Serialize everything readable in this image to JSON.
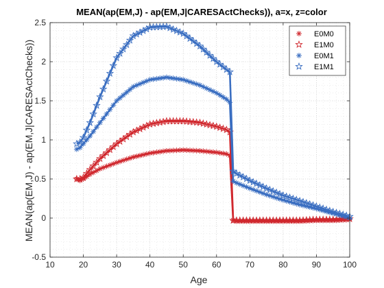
{
  "chart_data": {
    "type": "line",
    "title": "MEAN(ap(EM,J) - ap(EM,J|CARESActChecks)), a=x, z=color",
    "xlabel": "Age",
    "ylabel": "MEAN(ap(EM,J) - ap(EM,J|CARESActChecks))",
    "xlim": [
      10,
      100
    ],
    "ylim": [
      -0.5,
      2.5
    ],
    "xticks": [
      "10",
      "20",
      "30",
      "40",
      "50",
      "60",
      "70",
      "80",
      "90",
      "100"
    ],
    "yticks": [
      "-0.5",
      "0",
      "0.5",
      "1",
      "1.5",
      "2",
      "2.5"
    ],
    "grid": true,
    "legend_position": "top-right",
    "series": [
      {
        "name": "E0M0",
        "color": "#d0282e",
        "marker": "asterisk",
        "x": [
          18,
          19,
          20,
          22,
          25,
          30,
          35,
          40,
          45,
          50,
          55,
          60,
          63,
          64,
          65,
          66,
          70,
          75,
          80,
          85,
          90,
          95,
          100
        ],
        "y": [
          0.5,
          0.48,
          0.5,
          0.56,
          0.63,
          0.71,
          0.78,
          0.83,
          0.86,
          0.87,
          0.86,
          0.84,
          0.82,
          0.8,
          -0.03,
          -0.04,
          -0.04,
          -0.04,
          -0.04,
          -0.04,
          -0.03,
          -0.03,
          -0.02
        ]
      },
      {
        "name": "E1M0",
        "color": "#d0282e",
        "marker": "star",
        "x": [
          18,
          19,
          20,
          22,
          25,
          30,
          35,
          40,
          45,
          50,
          55,
          60,
          63,
          64,
          65,
          66,
          70,
          75,
          80,
          85,
          90,
          95,
          100
        ],
        "y": [
          0.5,
          0.5,
          0.52,
          0.62,
          0.76,
          0.95,
          1.1,
          1.2,
          1.24,
          1.24,
          1.22,
          1.17,
          1.13,
          1.1,
          -0.03,
          -0.03,
          -0.03,
          -0.03,
          -0.03,
          -0.03,
          -0.02,
          -0.02,
          -0.01
        ]
      },
      {
        "name": "E0M1",
        "color": "#3a6ec1",
        "marker": "asterisk",
        "x": [
          18,
          19,
          20,
          22,
          25,
          30,
          35,
          40,
          45,
          50,
          55,
          60,
          63,
          64,
          65,
          66,
          70,
          75,
          80,
          85,
          90,
          95,
          100
        ],
        "y": [
          0.88,
          0.9,
          0.95,
          1.05,
          1.22,
          1.5,
          1.68,
          1.77,
          1.8,
          1.77,
          1.7,
          1.6,
          1.52,
          1.48,
          0.47,
          0.45,
          0.38,
          0.3,
          0.23,
          0.17,
          0.12,
          0.06,
          0.0
        ]
      },
      {
        "name": "E1M1",
        "color": "#3a6ec1",
        "marker": "star",
        "x": [
          18,
          19,
          20,
          22,
          25,
          30,
          35,
          40,
          45,
          50,
          55,
          60,
          63,
          64,
          65,
          66,
          70,
          75,
          80,
          85,
          90,
          95,
          100
        ],
        "y": [
          0.95,
          0.97,
          1.03,
          1.22,
          1.55,
          2.05,
          2.33,
          2.44,
          2.45,
          2.36,
          2.2,
          2.0,
          1.9,
          1.87,
          0.6,
          0.57,
          0.48,
          0.38,
          0.29,
          0.22,
          0.15,
          0.08,
          0.02
        ]
      }
    ]
  }
}
